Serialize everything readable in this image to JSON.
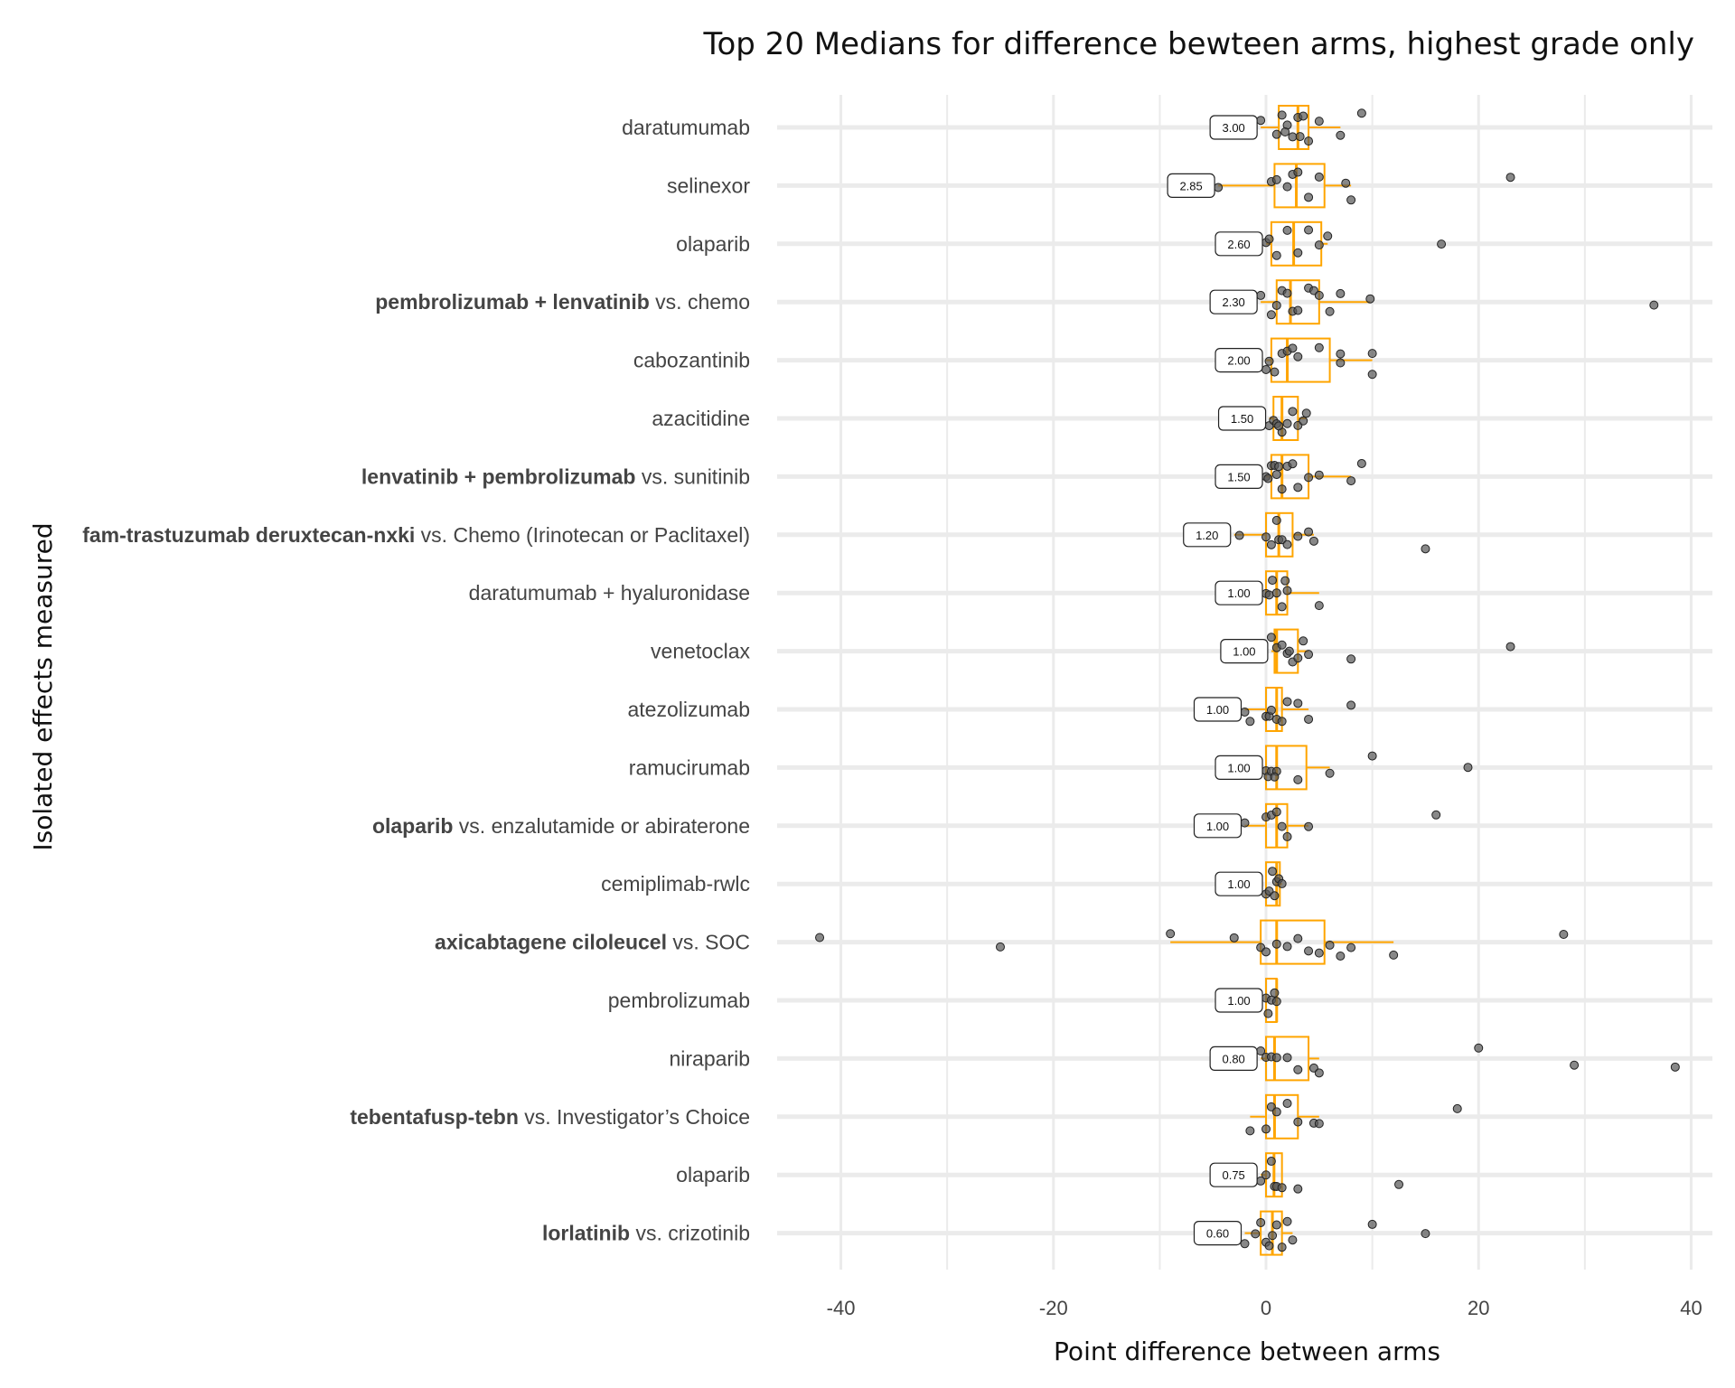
{
  "chart_data": {
    "type": "box",
    "title": "Top 20 Medians for difference bewteen arms, highest grade only",
    "xlabel": "Point difference between arms",
    "ylabel": "Isolated effects measured",
    "xlim": [
      -46,
      42
    ],
    "x_ticks": [
      -40,
      -20,
      0,
      20,
      40
    ],
    "x_tick_labels": [
      "-40",
      "-20",
      "0",
      "20",
      "40"
    ],
    "grid": true,
    "box_color": "#ffa500",
    "point_color": "#555555",
    "categories": [
      {
        "label_bold": "",
        "label_rest": "daratumumab",
        "median": 3.0,
        "median_label": "3.00",
        "q1": 1.2,
        "q3": 4.0,
        "whisker_low": -0.5,
        "whisker_high": 7.0,
        "points": [
          1.0,
          1.5,
          2.0,
          2.5,
          3.0,
          3.2,
          3.5,
          4.0,
          5.0,
          7.0,
          9.0,
          -0.5,
          1.8
        ]
      },
      {
        "label_bold": "",
        "label_rest": "selinexor",
        "median": 2.85,
        "median_label": "2.85",
        "q1": 0.8,
        "q3": 5.5,
        "whisker_low": -4.5,
        "whisker_high": 8.0,
        "points": [
          -4.5,
          0.5,
          1.0,
          2.0,
          2.5,
          3.0,
          4.0,
          5.0,
          7.5,
          8.0,
          23.0
        ]
      },
      {
        "label_bold": "",
        "label_rest": "olaparib",
        "median": 2.6,
        "median_label": "2.60",
        "q1": 0.5,
        "q3": 5.2,
        "whisker_low": 0.0,
        "whisker_high": 5.8,
        "points": [
          0.0,
          0.3,
          1.0,
          2.0,
          3.0,
          4.0,
          5.0,
          5.8,
          16.5
        ]
      },
      {
        "label_bold": "pembrolizumab + lenvatinib",
        "label_rest": " vs. chemo",
        "median": 2.3,
        "median_label": "2.30",
        "q1": 1.0,
        "q3": 5.0,
        "whisker_low": -0.5,
        "whisker_high": 9.8,
        "points": [
          -0.5,
          0.5,
          1.0,
          1.5,
          2.0,
          2.5,
          3.0,
          4.0,
          4.5,
          5.0,
          6.0,
          7.0,
          9.8,
          36.5
        ]
      },
      {
        "label_bold": "",
        "label_rest": "cabozantinib",
        "median": 2.0,
        "median_label": "2.00",
        "q1": 0.5,
        "q3": 6.0,
        "whisker_low": 0.0,
        "whisker_high": 10.0,
        "points": [
          0.0,
          0.3,
          0.8,
          1.5,
          2.0,
          2.5,
          3.0,
          5.0,
          7.0,
          10.0,
          10.0,
          7.0
        ]
      },
      {
        "label_bold": "",
        "label_rest": "azacitidine",
        "median": 1.5,
        "median_label": "1.50",
        "q1": 0.7,
        "q3": 3.0,
        "whisker_low": 0.3,
        "whisker_high": 3.8,
        "points": [
          0.3,
          0.7,
          1.0,
          1.5,
          2.0,
          2.5,
          3.0,
          3.5,
          3.8,
          1.2
        ]
      },
      {
        "label_bold": "lenvatinib + pembrolizumab",
        "label_rest": " vs. sunitinib",
        "median": 1.5,
        "median_label": "1.50",
        "q1": 0.5,
        "q3": 4.0,
        "whisker_low": 0.0,
        "whisker_high": 8.0,
        "points": [
          0.0,
          0.2,
          0.5,
          1.0,
          1.5,
          2.0,
          2.5,
          3.0,
          4.0,
          5.0,
          8.0,
          9.0,
          0.8,
          1.2
        ]
      },
      {
        "label_bold": "fam-trastuzumab deruxtecan-nxki",
        "label_rest": " vs. Chemo (Irinotecan or Paclitaxel)",
        "median": 1.2,
        "median_label": "1.20",
        "q1": 0.0,
        "q3": 2.5,
        "whisker_low": -3.0,
        "whisker_high": 4.5,
        "points": [
          -2.5,
          0.0,
          0.5,
          1.0,
          1.2,
          1.5,
          2.0,
          3.0,
          4.0,
          4.5,
          15.0
        ]
      },
      {
        "label_bold": "",
        "label_rest": "daratumumab + hyaluronidase",
        "median": 1.0,
        "median_label": "1.00",
        "q1": 0.0,
        "q3": 2.0,
        "whisker_low": 0.0,
        "whisker_high": 5.0,
        "points": [
          0.0,
          0.3,
          0.6,
          1.0,
          1.5,
          2.0,
          5.0,
          1.8
        ]
      },
      {
        "label_bold": "",
        "label_rest": "venetoclax",
        "median": 1.0,
        "median_label": "1.00",
        "q1": 0.8,
        "q3": 3.0,
        "whisker_low": 0.5,
        "whisker_high": 4.0,
        "points": [
          0.5,
          1.0,
          1.5,
          2.0,
          2.5,
          3.0,
          3.5,
          4.0,
          8.0,
          23.0,
          2.2
        ]
      },
      {
        "label_bold": "",
        "label_rest": "atezolizumab",
        "median": 1.0,
        "median_label": "1.00",
        "q1": 0.0,
        "q3": 1.5,
        "whisker_low": -2.0,
        "whisker_high": 4.0,
        "points": [
          -2.0,
          -1.5,
          0.0,
          0.3,
          0.5,
          1.0,
          1.5,
          2.0,
          3.0,
          4.0,
          8.0
        ]
      },
      {
        "label_bold": "",
        "label_rest": "ramucirumab",
        "median": 1.0,
        "median_label": "1.00",
        "q1": 0.0,
        "q3": 3.8,
        "whisker_low": 0.0,
        "whisker_high": 6.0,
        "points": [
          0.0,
          0.2,
          0.5,
          1.0,
          3.0,
          6.0,
          10.0,
          19.0,
          0.8
        ]
      },
      {
        "label_bold": "olaparib",
        "label_rest": " vs. enzalutamide or abiraterone",
        "median": 1.0,
        "median_label": "1.00",
        "q1": 0.0,
        "q3": 2.0,
        "whisker_low": -2.0,
        "whisker_high": 4.0,
        "points": [
          -2.0,
          0.0,
          0.5,
          1.0,
          1.5,
          2.0,
          4.0,
          16.0
        ]
      },
      {
        "label_bold": "",
        "label_rest": "cemiplimab-rwlc",
        "median": 1.0,
        "median_label": "1.00",
        "q1": 0.0,
        "q3": 1.3,
        "whisker_low": 0.0,
        "whisker_high": 1.5,
        "points": [
          0.0,
          0.3,
          0.6,
          1.0,
          1.2,
          1.5,
          0.8
        ]
      },
      {
        "label_bold": "axicabtagene ciloleucel",
        "label_rest": " vs. SOC",
        "median": 1.0,
        "median_label": "",
        "q1": -0.5,
        "q3": 5.5,
        "whisker_low": -9.0,
        "whisker_high": 12.0,
        "points": [
          -42.0,
          -25.0,
          -9.0,
          -3.0,
          -0.5,
          0.0,
          1.0,
          2.0,
          3.0,
          4.0,
          5.0,
          6.0,
          7.0,
          8.0,
          12.0,
          28.0
        ]
      },
      {
        "label_bold": "",
        "label_rest": "pembrolizumab",
        "median": 1.0,
        "median_label": "1.00",
        "q1": 0.0,
        "q3": 1.0,
        "whisker_low": 0.0,
        "whisker_high": 1.0,
        "points": [
          0.0,
          0.2,
          0.5,
          0.8,
          1.0
        ]
      },
      {
        "label_bold": "",
        "label_rest": "niraparib",
        "median": 0.8,
        "median_label": "0.80",
        "q1": 0.0,
        "q3": 4.0,
        "whisker_low": -0.5,
        "whisker_high": 5.0,
        "points": [
          -0.5,
          0.0,
          0.5,
          1.0,
          2.0,
          3.0,
          4.5,
          5.0,
          20.0,
          29.0,
          38.5
        ]
      },
      {
        "label_bold": "tebentafusp-tebn",
        "label_rest": " vs. Investigator’s Choice",
        "median": 0.8,
        "median_label": "",
        "q1": 0.0,
        "q3": 3.0,
        "whisker_low": -1.5,
        "whisker_high": 5.0,
        "points": [
          -1.5,
          0.0,
          0.5,
          1.0,
          2.0,
          3.0,
          4.5,
          5.0,
          18.0
        ]
      },
      {
        "label_bold": "",
        "label_rest": "olaparib",
        "median": 0.75,
        "median_label": "0.75",
        "q1": 0.0,
        "q3": 1.5,
        "whisker_low": -0.5,
        "whisker_high": 1.5,
        "points": [
          -0.5,
          0.0,
          0.5,
          0.8,
          1.0,
          1.5,
          3.0,
          12.5
        ]
      },
      {
        "label_bold": "lorlatinib",
        "label_rest": " vs. crizotinib",
        "median": 0.6,
        "median_label": "0.60",
        "q1": -0.5,
        "q3": 1.5,
        "whisker_low": -2.0,
        "whisker_high": 2.5,
        "points": [
          -2.0,
          -1.0,
          -0.5,
          0.0,
          0.3,
          0.6,
          1.0,
          1.5,
          2.0,
          2.5,
          10.0,
          15.0
        ]
      }
    ]
  }
}
